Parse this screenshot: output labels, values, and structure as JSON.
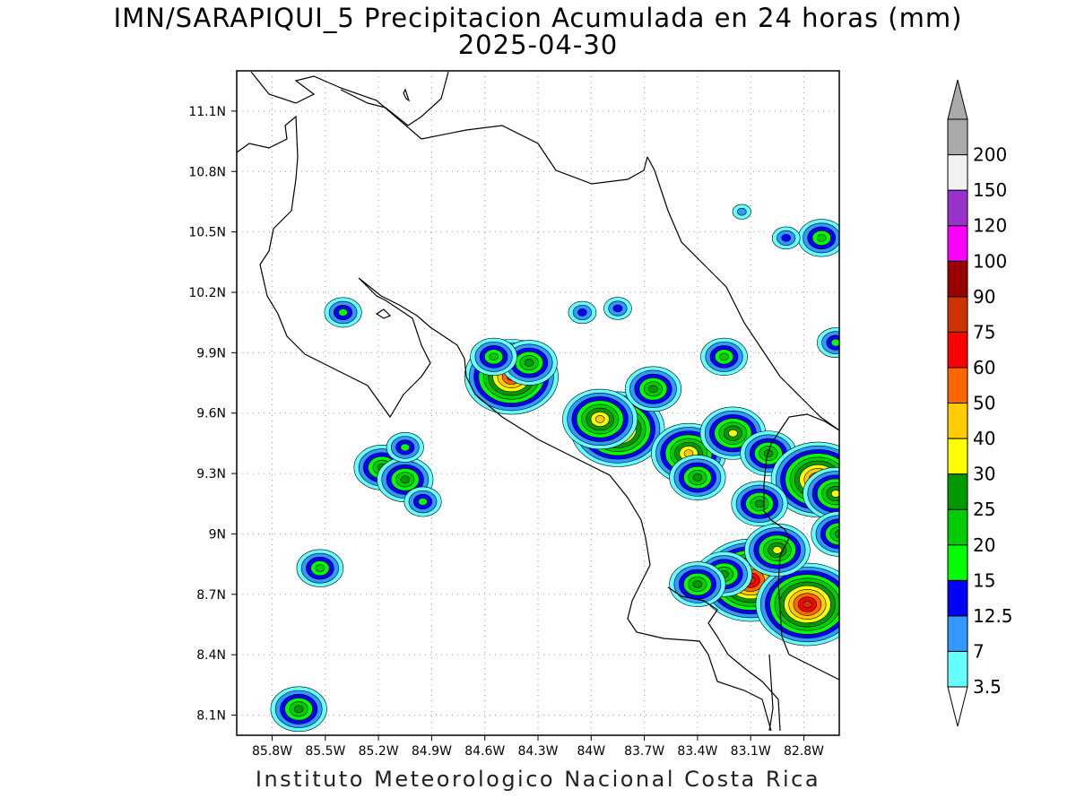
{
  "title_line1": "IMN/SARAPIQUI_5 Precipitacion Acumulada en 24 horas (mm)",
  "title_line2": "2025-04-30",
  "footer": "Instituto Meteorologico Nacional Costa Rica",
  "map": {
    "lon_range": [
      -86.0,
      -82.6
    ],
    "lat_range": [
      8.0,
      11.3
    ],
    "lon_ticks": [
      "85.8W",
      "85.5W",
      "85.2W",
      "84.9W",
      "84.6W",
      "84.3W",
      "84W",
      "83.7W",
      "83.4W",
      "83.1W",
      "82.8W"
    ],
    "lon_tick_values": [
      -85.8,
      -85.5,
      -85.2,
      -84.9,
      -84.6,
      -84.3,
      -84.0,
      -83.7,
      -83.4,
      -83.1,
      -82.8
    ],
    "lat_ticks": [
      "11.1N",
      "10.8N",
      "10.5N",
      "10.2N",
      "9.9N",
      "9.6N",
      "9.3N",
      "9N",
      "8.7N",
      "8.4N",
      "8.1N"
    ],
    "lat_tick_values": [
      11.1,
      10.8,
      10.5,
      10.2,
      9.9,
      9.6,
      9.3,
      9.0,
      8.7,
      8.4,
      8.1
    ],
    "grid": true
  },
  "colorbar": {
    "levels": [
      "3.5",
      "7",
      "12.5",
      "15",
      "20",
      "25",
      "30",
      "40",
      "50",
      "60",
      "75",
      "90",
      "100",
      "120",
      "150",
      "200"
    ],
    "colors": [
      "#66ffff",
      "#3399ff",
      "#0000ff",
      "#00ff00",
      "#00cc00",
      "#009900",
      "#ffff00",
      "#ffcc00",
      "#ff6600",
      "#ff0000",
      "#cc3300",
      "#990000",
      "#ff00ff",
      "#9933cc",
      "#f2f2f2",
      "#aaaaaa"
    ],
    "below_color": "#ffffff"
  },
  "precip_cells": [
    {
      "lon": -84.45,
      "lat": 9.78,
      "value": 60
    },
    {
      "lon": -84.35,
      "lat": 9.85,
      "value": 25
    },
    {
      "lon": -84.55,
      "lat": 9.88,
      "value": 20
    },
    {
      "lon": -83.85,
      "lat": 9.52,
      "value": 60
    },
    {
      "lon": -83.95,
      "lat": 9.57,
      "value": 40
    },
    {
      "lon": -83.65,
      "lat": 9.72,
      "value": 25
    },
    {
      "lon": -83.45,
      "lat": 9.4,
      "value": 40
    },
    {
      "lon": -83.4,
      "lat": 9.28,
      "value": 25
    },
    {
      "lon": -83.2,
      "lat": 9.5,
      "value": 30
    },
    {
      "lon": -83.0,
      "lat": 9.4,
      "value": 25
    },
    {
      "lon": -83.25,
      "lat": 9.88,
      "value": 20
    },
    {
      "lon": -83.1,
      "lat": 8.77,
      "value": 75
    },
    {
      "lon": -82.78,
      "lat": 8.65,
      "value": 75
    },
    {
      "lon": -82.95,
      "lat": 8.92,
      "value": 30
    },
    {
      "lon": -83.25,
      "lat": 8.8,
      "value": 25
    },
    {
      "lon": -83.4,
      "lat": 8.75,
      "value": 25
    },
    {
      "lon": -82.72,
      "lat": 9.27,
      "value": 60
    },
    {
      "lon": -82.62,
      "lat": 9.2,
      "value": 30
    },
    {
      "lon": -82.6,
      "lat": 9.0,
      "value": 25
    },
    {
      "lon": -83.05,
      "lat": 9.15,
      "value": 25
    },
    {
      "lon": -85.18,
      "lat": 9.33,
      "value": 25
    },
    {
      "lon": -85.05,
      "lat": 9.27,
      "value": 25
    },
    {
      "lon": -84.95,
      "lat": 9.16,
      "value": 15
    },
    {
      "lon": -85.05,
      "lat": 9.43,
      "value": 15
    },
    {
      "lon": -85.53,
      "lat": 8.83,
      "value": 20
    },
    {
      "lon": -85.65,
      "lat": 8.13,
      "value": 25
    },
    {
      "lon": -84.05,
      "lat": 10.1,
      "value": 12.5
    },
    {
      "lon": -83.85,
      "lat": 10.12,
      "value": 12.5
    },
    {
      "lon": -82.7,
      "lat": 10.47,
      "value": 20
    },
    {
      "lon": -82.9,
      "lat": 10.47,
      "value": 12.5
    },
    {
      "lon": -82.62,
      "lat": 9.95,
      "value": 15
    },
    {
      "lon": -85.4,
      "lat": 10.1,
      "value": 15
    },
    {
      "lon": -83.15,
      "lat": 10.6,
      "value": 7
    }
  ]
}
